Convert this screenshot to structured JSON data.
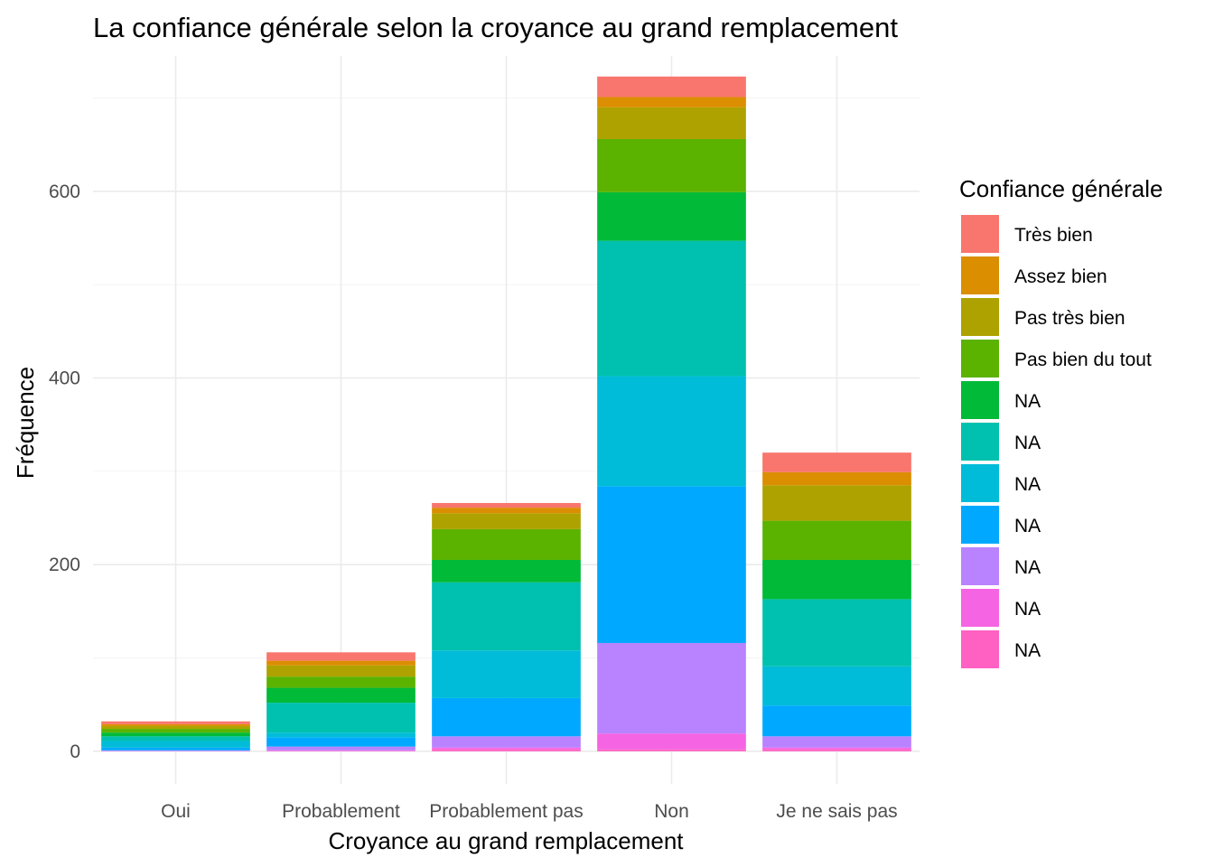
{
  "chart_data": {
    "type": "bar",
    "stacked": true,
    "title": "La confiance générale selon la croyance au grand remplacement",
    "xlabel": "Croyance au grand remplacement",
    "ylabel": "Fréquence",
    "ylim": [
      -35,
      745
    ],
    "yticks": [
      0,
      200,
      400,
      600
    ],
    "grid": true,
    "categories": [
      "Oui",
      "Probablement",
      "Probablement pas",
      "Non",
      "Je ne sais pas"
    ],
    "legend": {
      "title": "Confiance générale",
      "position": "right"
    },
    "series": [
      {
        "name": "NA",
        "color": "#FF61C3",
        "values": [
          0,
          0,
          2,
          2,
          2
        ]
      },
      {
        "name": "NA",
        "color": "#F564E3",
        "values": [
          0,
          1,
          2,
          17,
          2
        ]
      },
      {
        "name": "NA",
        "color": "#B983FF",
        "values": [
          1,
          4,
          12,
          97,
          12
        ]
      },
      {
        "name": "NA",
        "color": "#00A9FF",
        "values": [
          3,
          10,
          41,
          168,
          33
        ]
      },
      {
        "name": "NA",
        "color": "#00BCD8",
        "values": [
          7,
          5,
          51,
          118,
          42
        ]
      },
      {
        "name": "NA",
        "color": "#00C0AF",
        "values": [
          5,
          32,
          73,
          145,
          72
        ]
      },
      {
        "name": "NA",
        "color": "#00BA38",
        "values": [
          4,
          16,
          24,
          52,
          42
        ]
      },
      {
        "name": "Pas bien du tout",
        "color": "#5BB300",
        "values": [
          4,
          12,
          33,
          57,
          42
        ]
      },
      {
        "name": "Pas très bien",
        "color": "#AEA200",
        "values": [
          3,
          12,
          17,
          34,
          38
        ]
      },
      {
        "name": "Assez bien",
        "color": "#DB8E00",
        "values": [
          2,
          5,
          6,
          11,
          14
        ]
      },
      {
        "name": "Très bien",
        "color": "#F8766D",
        "values": [
          3,
          9,
          5,
          22,
          21
        ]
      }
    ]
  }
}
